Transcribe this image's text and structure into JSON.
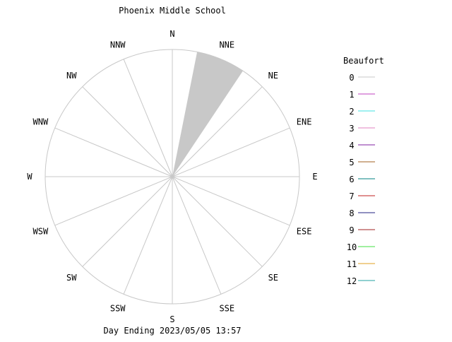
{
  "chart_data": {
    "type": "wind-rose",
    "title": "Phoenix Middle School",
    "footer": "Day Ending 2023/05/05 13:57",
    "directions": [
      "N",
      "NNE",
      "NE",
      "ENE",
      "E",
      "ESE",
      "SE",
      "SSE",
      "S",
      "SSW",
      "SW",
      "WSW",
      "W",
      "WNW",
      "NW",
      "NNW"
    ],
    "legend_title": "Beaufort",
    "legend_position": "right",
    "legend": [
      {
        "label": "0",
        "color": "#c8c8c8"
      },
      {
        "label": "1",
        "color": "#c040c0"
      },
      {
        "label": "2",
        "color": "#40e0e0"
      },
      {
        "label": "3",
        "color": "#e080c0"
      },
      {
        "label": "4",
        "color": "#8020a0"
      },
      {
        "label": "5",
        "color": "#a06020"
      },
      {
        "label": "6",
        "color": "#008080"
      },
      {
        "label": "7",
        "color": "#c02020"
      },
      {
        "label": "8",
        "color": "#202080"
      },
      {
        "label": "9",
        "color": "#a02020"
      },
      {
        "label": "10",
        "color": "#40e040"
      },
      {
        "label": "11",
        "color": "#e0a020"
      },
      {
        "label": "12",
        "color": "#20a0a0"
      }
    ],
    "series": [
      {
        "name": "0",
        "direction": "NNE",
        "value": 1.0,
        "color": "#c8c8c8"
      }
    ],
    "rmax": 1.0
  }
}
